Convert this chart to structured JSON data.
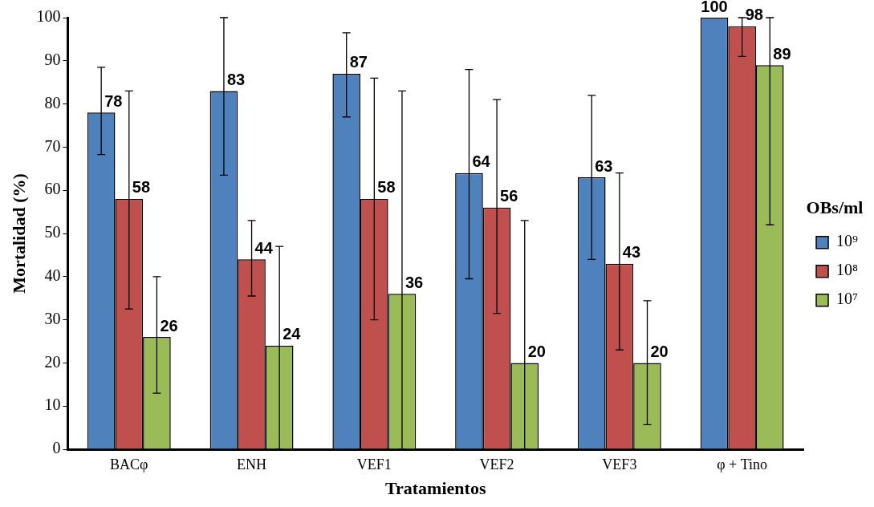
{
  "chart_data": {
    "type": "bar",
    "xlabel": "Tratamientos",
    "ylabel": "Mortalidad (%)",
    "legend_title": "OBs/ml",
    "categories": [
      "BACφ",
      "ENH",
      "VEF1",
      "VEF2",
      "VEF3",
      "φ + Tino"
    ],
    "series": [
      {
        "name": "10⁹",
        "color": "#4f81bd",
        "values": [
          78,
          83,
          87,
          64,
          63,
          100
        ],
        "errors": [
          [
            68.3,
            88.5
          ],
          [
            63.5,
            100
          ],
          [
            77,
            96.5
          ],
          [
            39.5,
            88
          ],
          [
            44,
            82
          ],
          null
        ]
      },
      {
        "name": "10⁸",
        "color": "#c0504d",
        "values": [
          58,
          44,
          58,
          56,
          43,
          98
        ],
        "errors": [
          [
            32.5,
            83
          ],
          [
            35.5,
            53
          ],
          [
            30,
            86
          ],
          [
            31.5,
            81
          ],
          [
            23,
            64
          ],
          [
            91,
            100
          ]
        ]
      },
      {
        "name": "10⁷",
        "color": "#9bbb59",
        "values": [
          26,
          24,
          36,
          20,
          20,
          89
        ],
        "errors": [
          [
            13,
            40
          ],
          [
            0,
            47
          ],
          [
            0,
            83
          ],
          [
            0,
            53
          ],
          [
            5.7,
            34.4
          ],
          [
            52,
            100
          ]
        ]
      }
    ],
    "ylim": [
      0,
      100
    ],
    "yticks": [
      0,
      10,
      20,
      30,
      40,
      50,
      60,
      70,
      80,
      90,
      100
    ],
    "data_labels": true,
    "legend": "right",
    "grid": false
  }
}
